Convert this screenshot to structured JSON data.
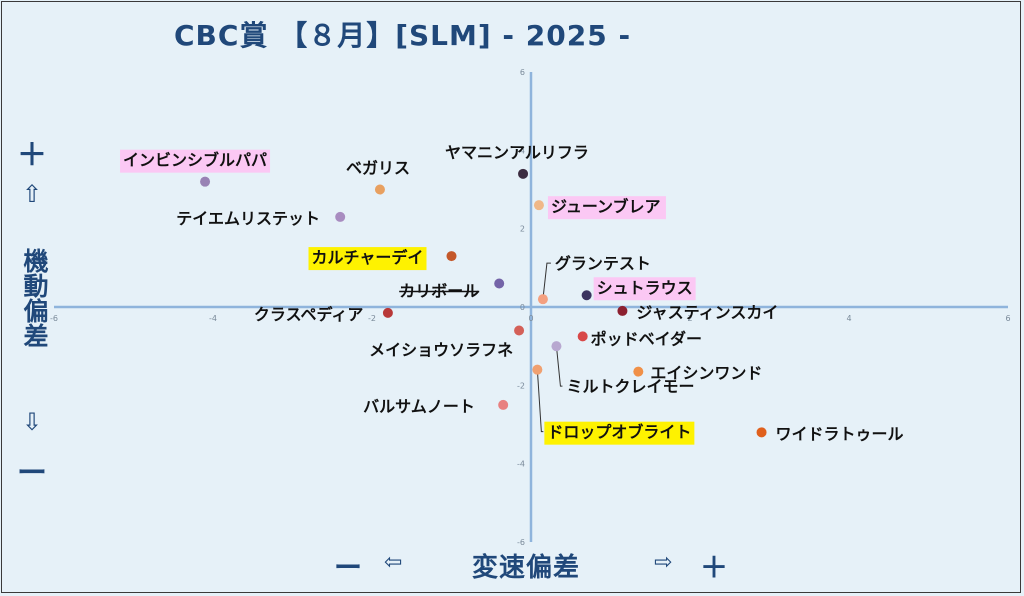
{
  "header": {
    "title": "CBC賞 【８月】[SLM]  - 2025 -"
  },
  "y_axis_label": {
    "plus": "＋",
    "up_arrow": "⇧",
    "text": "機動偏差",
    "down_arrow": "⇩",
    "minus": "ー"
  },
  "x_axis_label": {
    "minus": "ー",
    "left_arrow": "⇦",
    "text": "変速偏差",
    "right_arrow": "⇨",
    "plus": "＋"
  },
  "chart_data": {
    "type": "scatter",
    "xlim": [
      -6,
      6
    ],
    "ylim": [
      -6,
      6
    ],
    "x_ticks": [
      "-6",
      "-4",
      "-2",
      "0",
      "2",
      "4",
      "6"
    ],
    "y_ticks": [
      "6",
      "4",
      "2",
      "0",
      "-2",
      "-4",
      "-6"
    ],
    "grid": false,
    "points": [
      {
        "name": "インビンシブルパパ",
        "x": -4.1,
        "y": 3.2,
        "color": "#9882b4",
        "highlight": "#fbc8f4"
      },
      {
        "name": "ベガリス",
        "x": -1.9,
        "y": 3.0,
        "color": "#e8a060",
        "highlight": ""
      },
      {
        "name": "ヤマニンアルリフラ",
        "x": -0.1,
        "y": 3.4,
        "color": "#3c2c40",
        "highlight": ""
      },
      {
        "name": "テイエムリステット",
        "x": -2.4,
        "y": 2.3,
        "color": "#a88cc0",
        "highlight": ""
      },
      {
        "name": "ジューンブレア",
        "x": 0.1,
        "y": 2.6,
        "color": "#f0b888",
        "highlight": "#fbc8f4"
      },
      {
        "name": "カルチャーデイ",
        "x": -1.0,
        "y": 1.3,
        "color": "#c4582a",
        "highlight": "#fef200"
      },
      {
        "name": "グランテスト",
        "x": 0.15,
        "y": 0.2,
        "color": "#f4a080",
        "highlight": ""
      },
      {
        "name": "シュトラウス",
        "x": 0.7,
        "y": 0.3,
        "color": "#3c3460",
        "highlight": "#fbc8f4"
      },
      {
        "name": "カリボール",
        "x": -0.4,
        "y": 0.6,
        "color": "#7464a8",
        "highlight": "",
        "strikethrough": true
      },
      {
        "name": "クラスペディア",
        "x": -1.8,
        "y": -0.15,
        "color": "#b83838",
        "highlight": ""
      },
      {
        "name": "ジャスティンスカイ",
        "x": 1.15,
        "y": -0.1,
        "color": "#8c2030",
        "highlight": ""
      },
      {
        "name": "メイショウソラフネ",
        "x": -0.15,
        "y": -0.6,
        "color": "#d46058",
        "highlight": ""
      },
      {
        "name": "ポッドベイダー",
        "x": 0.65,
        "y": -0.75,
        "color": "#d84848",
        "highlight": ""
      },
      {
        "name": "ミルトクレイモー",
        "x": 0.32,
        "y": -1.0,
        "color": "#b8a8d0",
        "highlight": ""
      },
      {
        "name": "ドロップオブライト",
        "x": 0.08,
        "y": -1.6,
        "color": "#f0a070",
        "highlight": "#fef200"
      },
      {
        "name": "エイシンワンド",
        "x": 1.35,
        "y": -1.65,
        "color": "#f09048",
        "highlight": ""
      },
      {
        "name": "バルサムノート",
        "x": -0.35,
        "y": -2.5,
        "color": "#e88080",
        "highlight": ""
      },
      {
        "name": "ワイドラトゥール",
        "x": 2.9,
        "y": -3.2,
        "color": "#e0601c",
        "highlight": ""
      }
    ]
  }
}
